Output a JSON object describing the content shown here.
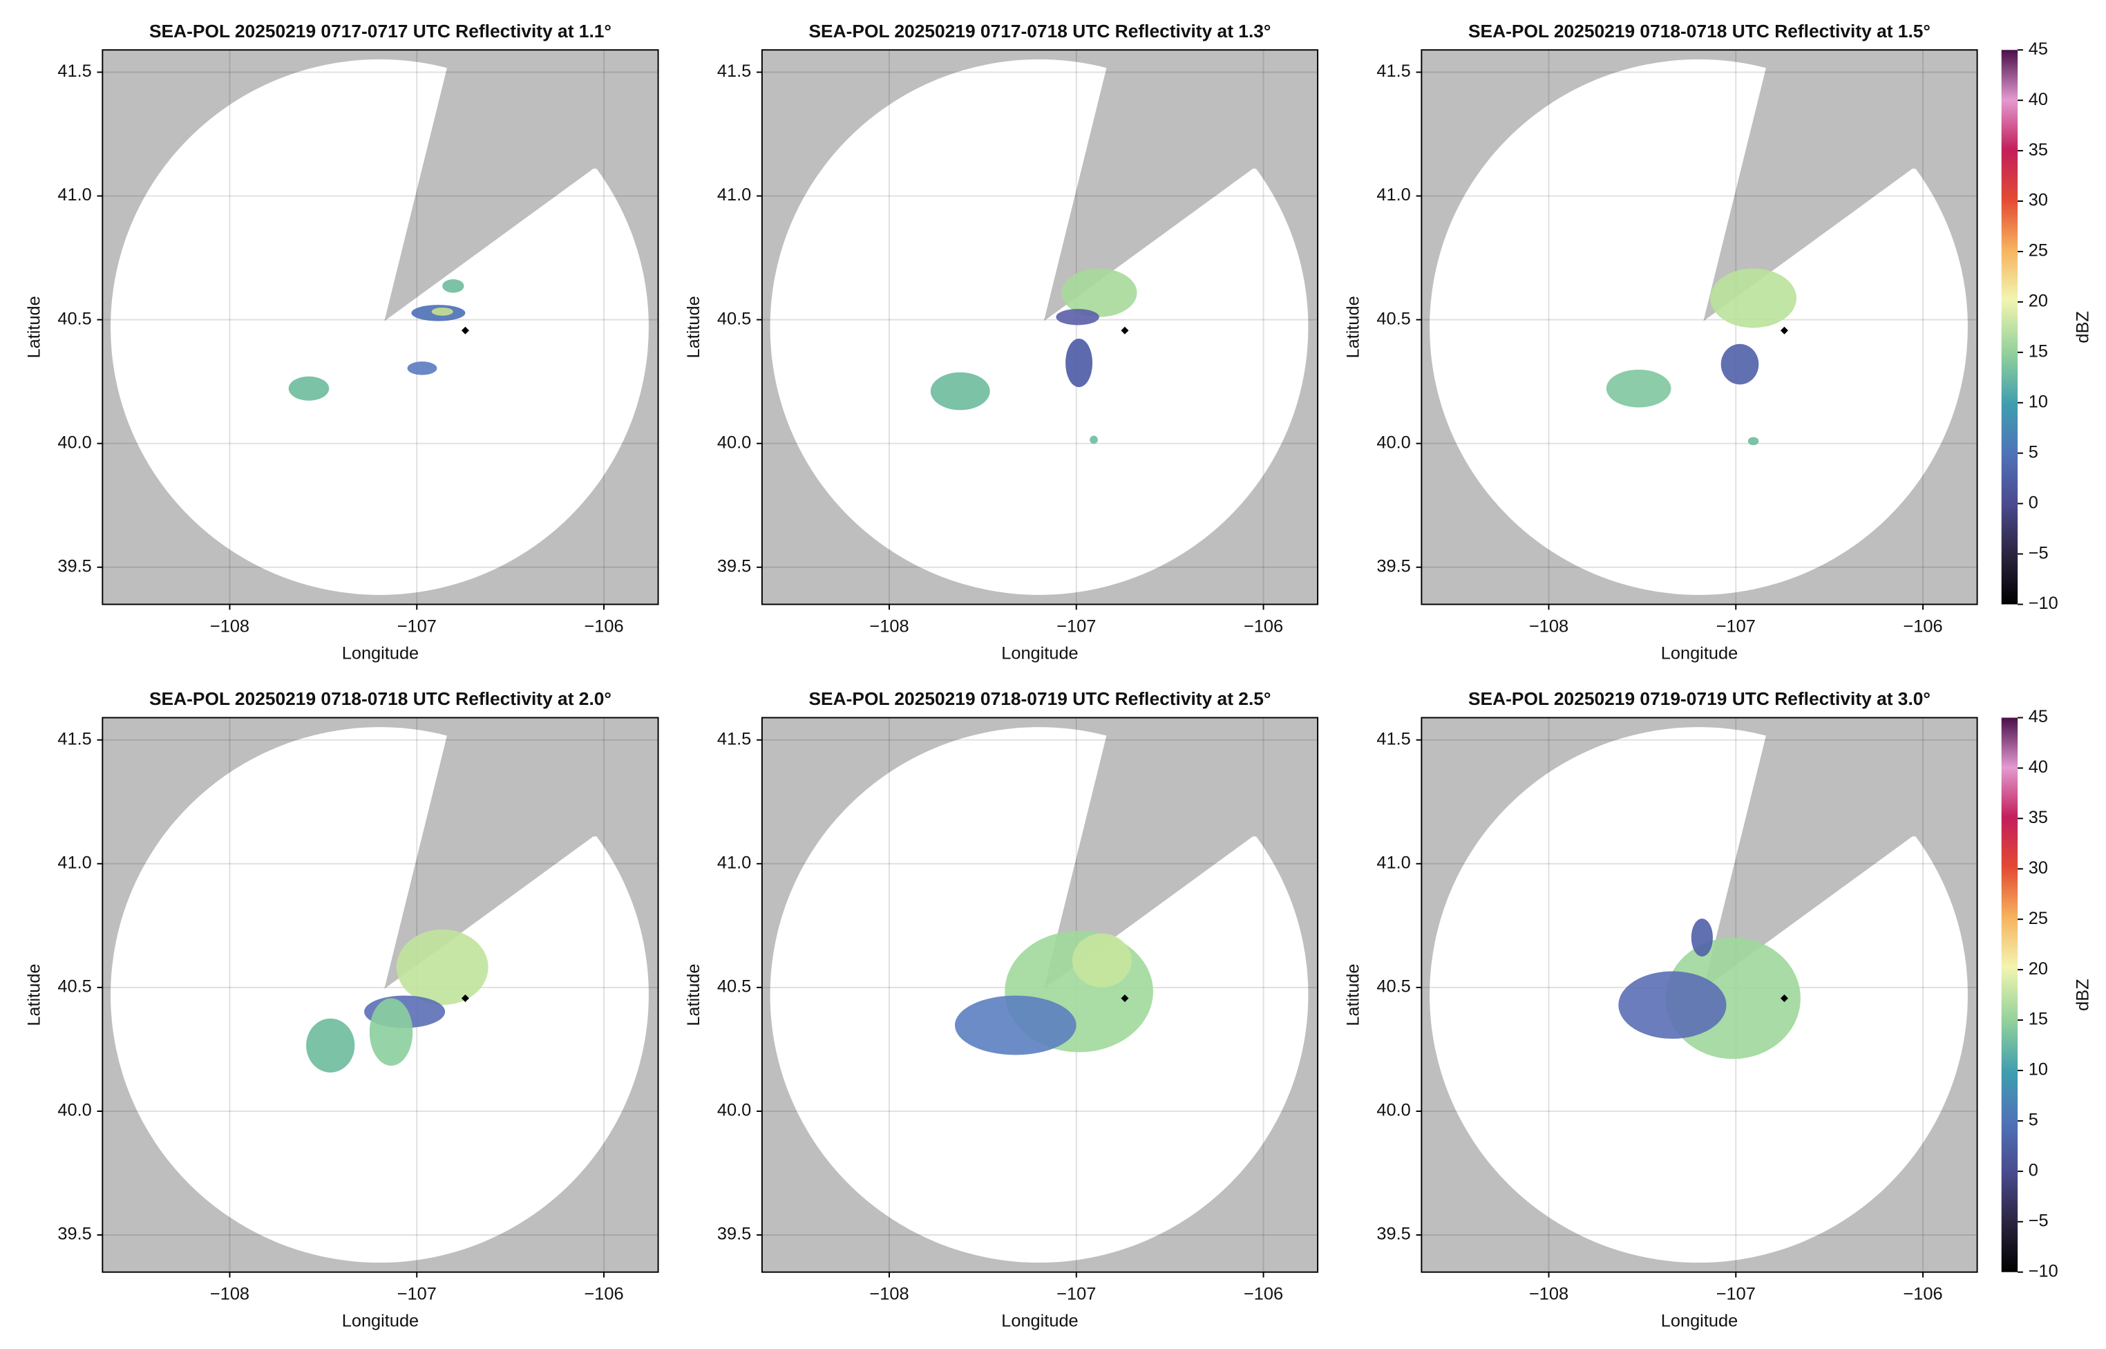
{
  "chart_data": [
    {
      "type": "radar",
      "title": "SEA-POL 20250219 0717-0717 UTC Reflectivity at 1.1°",
      "xlabel": "Longitude",
      "ylabel": "Latitude",
      "xlim": [
        -108.68,
        -105.71
      ],
      "ylim": [
        39.35,
        41.59
      ],
      "xticks": [
        {
          "value": -108,
          "label": "−108"
        },
        {
          "value": -107,
          "label": "−107"
        },
        {
          "value": -106,
          "label": "−106"
        }
      ],
      "yticks": [
        39.5,
        {
          "value": 40,
          "label": "40.0"
        },
        40.5,
        {
          "value": 41,
          "label": "41.0"
        },
        41.5
      ],
      "grid": true
    },
    {
      "type": "radar",
      "title": "SEA-POL 20250219 0717-0718 UTC Reflectivity at 1.3°",
      "xlabel": "Longitude",
      "ylabel": "Latitude",
      "xlim": [
        -108.68,
        -105.71
      ],
      "ylim": [
        39.35,
        41.59
      ],
      "xticks": [
        {
          "value": -108,
          "label": "−108"
        },
        {
          "value": -107,
          "label": "−107"
        },
        {
          "value": -106,
          "label": "−106"
        }
      ],
      "yticks": [
        39.5,
        {
          "value": 40,
          "label": "40.0"
        },
        40.5,
        {
          "value": 41,
          "label": "41.0"
        },
        41.5
      ],
      "grid": true
    },
    {
      "type": "radar",
      "title": "SEA-POL 20250219 0718-0718 UTC Reflectivity at 1.5°",
      "xlabel": "Longitude",
      "ylabel": "Latitude",
      "xlim": [
        -108.68,
        -105.71
      ],
      "ylim": [
        39.35,
        41.59
      ],
      "xticks": [
        {
          "value": -108,
          "label": "−108"
        },
        {
          "value": -107,
          "label": "−107"
        },
        {
          "value": -106,
          "label": "−106"
        }
      ],
      "yticks": [
        39.5,
        {
          "value": 40,
          "label": "40.0"
        },
        40.5,
        {
          "value": 41,
          "label": "41.0"
        },
        41.5
      ],
      "grid": true,
      "colorbar": {
        "label": "dBZ",
        "lim": [
          -10,
          45
        ],
        "ticks": [
          {
            "value": -10,
            "label": "−10"
          },
          {
            "value": -5,
            "label": "−5"
          },
          0,
          5,
          10,
          15,
          20,
          25,
          30,
          35,
          40,
          45
        ]
      }
    },
    {
      "type": "radar",
      "title": "SEA-POL 20250219 0718-0718 UTC Reflectivity at 2.0°",
      "xlabel": "Longitude",
      "ylabel": "Latitude",
      "xlim": [
        -108.68,
        -105.71
      ],
      "ylim": [
        39.35,
        41.59
      ],
      "xticks": [
        {
          "value": -108,
          "label": "−108"
        },
        {
          "value": -107,
          "label": "−107"
        },
        {
          "value": -106,
          "label": "−106"
        }
      ],
      "yticks": [
        39.5,
        {
          "value": 40,
          "label": "40.0"
        },
        40.5,
        {
          "value": 41,
          "label": "41.0"
        },
        41.5
      ],
      "grid": true
    },
    {
      "type": "radar",
      "title": "SEA-POL 20250219 0718-0719 UTC Reflectivity at 2.5°",
      "xlabel": "Longitude",
      "ylabel": "Latitude",
      "xlim": [
        -108.68,
        -105.71
      ],
      "ylim": [
        39.35,
        41.59
      ],
      "xticks": [
        {
          "value": -108,
          "label": "−108"
        },
        {
          "value": -107,
          "label": "−107"
        },
        {
          "value": -106,
          "label": "−106"
        }
      ],
      "yticks": [
        39.5,
        {
          "value": 40,
          "label": "40.0"
        },
        40.5,
        {
          "value": 41,
          "label": "41.0"
        },
        41.5
      ],
      "grid": true
    },
    {
      "type": "radar",
      "title": "SEA-POL 20250219 0719-0719 UTC Reflectivity at 3.0°",
      "xlabel": "Longitude",
      "ylabel": "Latitude",
      "xlim": [
        -108.68,
        -105.71
      ],
      "ylim": [
        39.35,
        41.59
      ],
      "xticks": [
        {
          "value": -108,
          "label": "−108"
        },
        {
          "value": -107,
          "label": "−107"
        },
        {
          "value": -106,
          "label": "−106"
        }
      ],
      "yticks": [
        39.5,
        {
          "value": 40,
          "label": "40.0"
        },
        40.5,
        {
          "value": 41,
          "label": "41.0"
        },
        41.5
      ],
      "grid": true,
      "colorbar": {
        "label": "dBZ",
        "lim": [
          -10,
          45
        ],
        "ticks": [
          {
            "value": -10,
            "label": "−10"
          },
          {
            "value": -5,
            "label": "−5"
          },
          0,
          5,
          10,
          15,
          20,
          25,
          30,
          35,
          40,
          45
        ]
      }
    }
  ]
}
